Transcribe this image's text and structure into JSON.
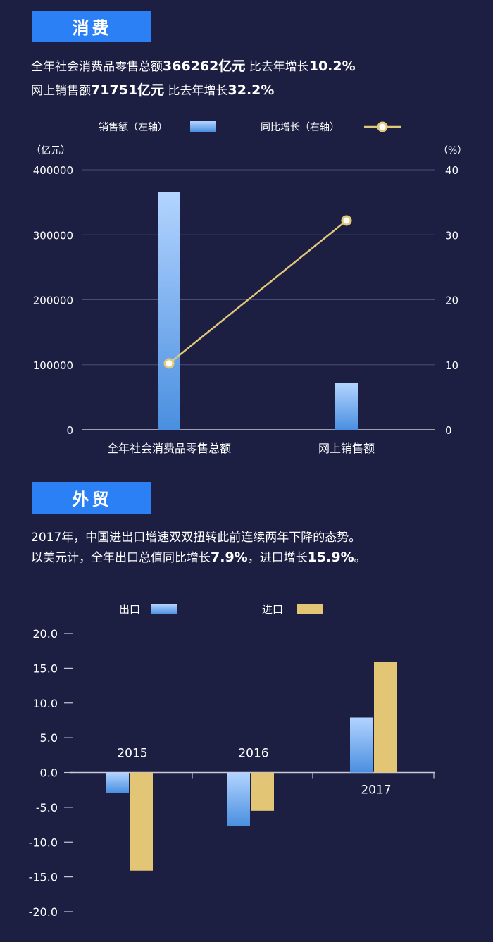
{
  "section1": {
    "title": "消费",
    "line1": {
      "prefix": "全年社会消费品零售总额",
      "value": "366262亿元",
      "mid": " 比去年增长",
      "growth": "10.2%"
    },
    "line2": {
      "prefix": "网上销售额",
      "value": "71751亿元",
      "mid": " 比去年增长",
      "growth": "32.2%"
    }
  },
  "section2": {
    "title": "外贸",
    "line1": "2017年，中国进出口增速双双扭转此前连续两年下降的态势。",
    "line2": {
      "prefix": "以美元计，全年出口总值同比增长",
      "export": "7.9%",
      "mid": "，进口增长",
      "import": "15.9%",
      "end": "。"
    }
  },
  "colors": {
    "bar_top": "#b3d4ff",
    "bar_bottom": "#4a8fe0",
    "line": "#e2c879",
    "gold": "#e2c675"
  },
  "chart_data": [
    {
      "type": "bar+line",
      "categories": [
        "全年社会消费品零售总额",
        "网上销售额"
      ],
      "series": [
        {
          "name": "销售额（左轴）",
          "axis": "left",
          "type": "bar",
          "values": [
            366262,
            71751
          ]
        },
        {
          "name": "同比增长（右轴）",
          "axis": "right",
          "type": "line",
          "values": [
            10.2,
            32.2
          ]
        }
      ],
      "left_unit": "（亿元）",
      "right_unit": "（%）",
      "left_ticks": [
        "400000",
        "300000",
        "200000",
        "100000",
        "0"
      ],
      "right_ticks": [
        "40",
        "30",
        "20",
        "10",
        "0"
      ],
      "ylim_left": [
        0,
        400000
      ],
      "ylim_right": [
        0,
        40
      ],
      "grid": true,
      "legend": "top"
    },
    {
      "type": "bar",
      "categories": [
        "2015",
        "2016",
        "2017"
      ],
      "series": [
        {
          "name": "出口",
          "values": [
            -2.9,
            -7.7,
            7.9
          ]
        },
        {
          "name": "进口",
          "values": [
            -14.1,
            -5.5,
            15.9
          ]
        }
      ],
      "y_ticks": [
        "20.0",
        "15.0",
        "10.0",
        "5.0",
        "0.0",
        "-5.0",
        "-10.0",
        "-15.0",
        "-20.0"
      ],
      "ylim": [
        -20,
        20
      ],
      "grid": false,
      "legend": "top"
    }
  ]
}
